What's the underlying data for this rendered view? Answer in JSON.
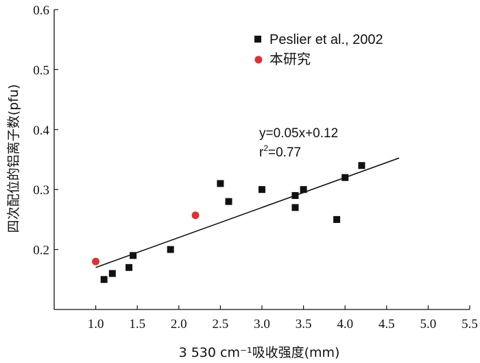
{
  "chart_data": {
    "type": "scatter",
    "xlabel": "3 530 cm⁻¹吸收强度(mm)",
    "ylabel": "四次配位的铝离子数(pfu)",
    "xlim": [
      0.5,
      5.5
    ],
    "ylim": [
      0.1,
      0.6
    ],
    "x_ticks": [
      1.0,
      1.5,
      2.0,
      2.5,
      3.0,
      3.5,
      4.0,
      4.5,
      5.0,
      5.5
    ],
    "y_ticks": [
      0.2,
      0.3,
      0.4,
      0.5,
      0.6
    ],
    "x_tick_labels": [
      "1.0",
      "1.5",
      "2.0",
      "2.5",
      "3.0",
      "3.5",
      "4.0",
      "4.5",
      "5.0",
      "5.5"
    ],
    "y_tick_labels": [
      "0.2",
      "0.3",
      "0.4",
      "0.5",
      "0.6"
    ],
    "grid": false,
    "legend_position": "top-right",
    "series": [
      {
        "name": "Peslier et al., 2002",
        "marker": "square",
        "color": "#111111",
        "points": [
          {
            "x": 1.1,
            "y": 0.15
          },
          {
            "x": 1.2,
            "y": 0.16
          },
          {
            "x": 1.4,
            "y": 0.17
          },
          {
            "x": 1.45,
            "y": 0.19
          },
          {
            "x": 1.9,
            "y": 0.2
          },
          {
            "x": 2.5,
            "y": 0.31
          },
          {
            "x": 2.6,
            "y": 0.28
          },
          {
            "x": 3.0,
            "y": 0.3
          },
          {
            "x": 3.4,
            "y": 0.29
          },
          {
            "x": 3.4,
            "y": 0.27
          },
          {
            "x": 3.5,
            "y": 0.3
          },
          {
            "x": 3.9,
            "y": 0.25
          },
          {
            "x": 4.0,
            "y": 0.32
          },
          {
            "x": 4.2,
            "y": 0.34
          }
        ]
      },
      {
        "name": "本研究",
        "marker": "circle",
        "color": "#e03030",
        "points": [
          {
            "x": 1.0,
            "y": 0.18
          },
          {
            "x": 2.2,
            "y": 0.257
          }
        ]
      }
    ],
    "fit_line": {
      "slope": 0.05,
      "intercept": 0.12,
      "x_range": [
        1.0,
        4.65
      ]
    },
    "annotations": {
      "equation": "y=0.05x+0.12",
      "r_squared_prefix": "r",
      "r_squared_sup": "2",
      "r_squared_value": "=0.77"
    }
  }
}
